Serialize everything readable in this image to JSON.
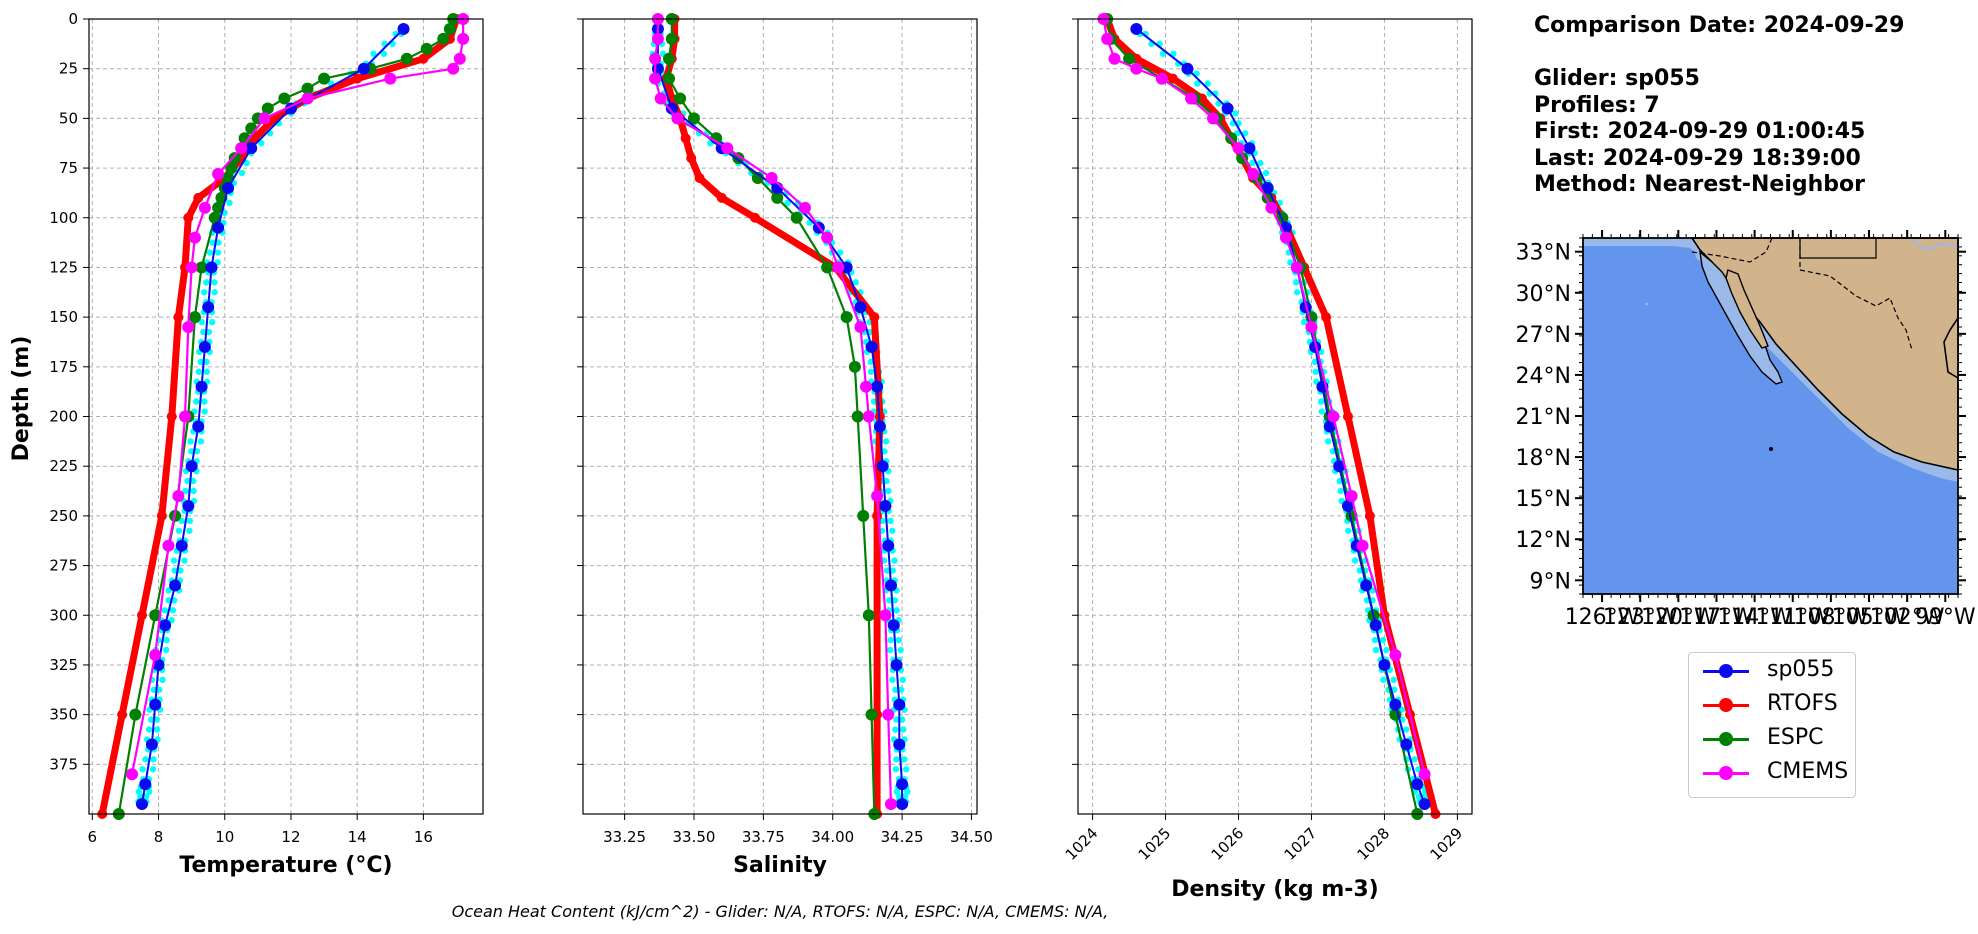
{
  "info": {
    "comparison_date": "Comparison Date: 2024-09-29",
    "glider": "Glider: sp055",
    "profiles": "Profiles: 7",
    "first": "First: 2024-09-29 01:00:45",
    "last": "Last: 2024-09-29 18:39:00",
    "method": "Method: Nearest-Neighbor"
  },
  "footer": "Ocean Heat Content (kJ/cm^2) - Glider: N/A,  RTOFS: N/A,  ESPC: N/A,  CMEMS: N/A,",
  "legend": [
    {
      "name": "sp055",
      "color": "#0a0af0"
    },
    {
      "name": "RTOFS",
      "color": "#ff0000"
    },
    {
      "name": "ESPC",
      "color": "#008000"
    },
    {
      "name": "CMEMS",
      "color": "#ff00ff"
    }
  ],
  "colors": {
    "glider_raw": "#00ffff",
    "ocean": "#6495ed",
    "land": "#d2b48c",
    "shelf": "#9ab8e8"
  },
  "chart_data": [
    {
      "type": "line",
      "xlabel": "Temperature (°C)",
      "ylabel": "Depth (m)",
      "xlim": [
        5.9,
        17.8
      ],
      "ylim": [
        400,
        0
      ],
      "xticks": [
        6,
        8,
        10,
        12,
        14,
        16
      ],
      "yticks": [
        0,
        25,
        50,
        75,
        100,
        125,
        150,
        175,
        200,
        225,
        250,
        275,
        300,
        325,
        350,
        375
      ],
      "grid": true,
      "series": [
        {
          "name": "sp055",
          "depth": [
            5,
            25,
            45,
            65,
            85,
            105,
            125,
            145,
            165,
            185,
            205,
            225,
            245,
            265,
            285,
            305,
            325,
            345,
            365,
            385,
            395
          ],
          "values": [
            15.4,
            14.2,
            12.0,
            10.8,
            10.1,
            9.8,
            9.6,
            9.5,
            9.4,
            9.3,
            9.2,
            9.0,
            8.9,
            8.7,
            8.5,
            8.2,
            8.0,
            7.9,
            7.8,
            7.6,
            7.5
          ]
        },
        {
          "name": "RTOFS",
          "depth": [
            0,
            10,
            20,
            30,
            40,
            50,
            60,
            70,
            80,
            90,
            100,
            125,
            150,
            200,
            250,
            300,
            350,
            400
          ],
          "values": [
            17.0,
            16.8,
            16.0,
            14.0,
            12.5,
            11.5,
            10.9,
            10.5,
            10.0,
            9.2,
            8.9,
            8.8,
            8.6,
            8.4,
            8.1,
            7.5,
            6.9,
            6.3
          ]
        },
        {
          "name": "ESPC",
          "depth": [
            0,
            5,
            10,
            15,
            20,
            25,
            30,
            35,
            40,
            45,
            50,
            55,
            60,
            65,
            70,
            75,
            80,
            85,
            90,
            95,
            100,
            125,
            150,
            200,
            250,
            300,
            350,
            400
          ],
          "values": [
            16.9,
            16.8,
            16.6,
            16.1,
            15.5,
            14.4,
            13.0,
            12.5,
            11.8,
            11.3,
            11.0,
            10.8,
            10.6,
            10.5,
            10.3,
            10.2,
            10.1,
            10.0,
            9.9,
            9.8,
            9.7,
            9.3,
            9.1,
            8.9,
            8.5,
            7.9,
            7.3,
            6.8
          ]
        },
        {
          "name": "CMEMS",
          "depth": [
            0,
            10,
            20,
            25,
            30,
            40,
            50,
            65,
            78,
            95,
            110,
            125,
            155,
            200,
            240,
            265,
            320,
            380
          ],
          "values": [
            17.2,
            17.2,
            17.1,
            16.9,
            15.0,
            12.5,
            11.2,
            10.5,
            9.8,
            9.4,
            9.1,
            9.0,
            8.9,
            8.8,
            8.6,
            8.3,
            7.9,
            7.2
          ]
        }
      ]
    },
    {
      "type": "line",
      "xlabel": "Salinity",
      "xlim": [
        33.1,
        34.52
      ],
      "ylim": [
        400,
        0
      ],
      "xticks": [
        "33.25",
        "33.50",
        "33.75",
        "34.00",
        "34.25",
        "34.50"
      ],
      "grid": true,
      "series": [
        {
          "name": "sp055",
          "depth": [
            5,
            25,
            45,
            65,
            85,
            105,
            125,
            145,
            165,
            185,
            205,
            225,
            245,
            265,
            285,
            305,
            325,
            345,
            365,
            385,
            395
          ],
          "values": [
            33.37,
            33.37,
            33.42,
            33.6,
            33.8,
            33.95,
            34.05,
            34.1,
            34.14,
            34.16,
            34.17,
            34.18,
            34.19,
            34.2,
            34.21,
            34.22,
            34.23,
            34.24,
            34.24,
            34.25,
            34.25
          ]
        },
        {
          "name": "RTOFS",
          "depth": [
            0,
            10,
            20,
            30,
            40,
            50,
            60,
            70,
            80,
            90,
            100,
            125,
            150,
            200,
            250,
            300,
            350,
            400
          ],
          "values": [
            33.43,
            33.43,
            33.42,
            33.4,
            33.42,
            33.45,
            33.47,
            33.49,
            33.52,
            33.6,
            33.72,
            34.01,
            34.15,
            34.17,
            34.16,
            34.16,
            34.16,
            34.16
          ]
        },
        {
          "name": "ESPC",
          "depth": [
            0,
            10,
            20,
            30,
            40,
            50,
            60,
            70,
            80,
            90,
            100,
            125,
            150,
            175,
            200,
            250,
            300,
            350,
            400
          ],
          "values": [
            33.42,
            33.42,
            33.41,
            33.41,
            33.45,
            33.5,
            33.58,
            33.66,
            33.73,
            33.8,
            33.87,
            33.98,
            34.05,
            34.08,
            34.09,
            34.11,
            34.13,
            34.14,
            34.15
          ]
        },
        {
          "name": "CMEMS",
          "depth": [
            0,
            10,
            20,
            30,
            40,
            50,
            65,
            80,
            95,
            110,
            125,
            155,
            185,
            200,
            240,
            300,
            350,
            395
          ],
          "values": [
            33.37,
            33.37,
            33.36,
            33.36,
            33.38,
            33.44,
            33.62,
            33.78,
            33.9,
            33.98,
            34.02,
            34.1,
            34.12,
            34.13,
            34.16,
            34.19,
            34.2,
            34.21
          ]
        }
      ]
    },
    {
      "type": "line",
      "xlabel": "Density (kg m-3)",
      "xlim": [
        1023.8,
        1029.2
      ],
      "ylim": [
        400,
        0
      ],
      "xticks": [
        1024,
        1025,
        1026,
        1027,
        1028,
        1029
      ],
      "grid": true,
      "series": [
        {
          "name": "sp055",
          "depth": [
            5,
            25,
            45,
            65,
            85,
            105,
            125,
            145,
            165,
            185,
            205,
            225,
            245,
            265,
            285,
            305,
            325,
            345,
            365,
            385,
            395
          ],
          "values": [
            1024.6,
            1025.3,
            1025.85,
            1026.15,
            1026.4,
            1026.65,
            1026.8,
            1026.92,
            1027.05,
            1027.15,
            1027.25,
            1027.38,
            1027.5,
            1027.62,
            1027.75,
            1027.88,
            1028.0,
            1028.15,
            1028.3,
            1028.45,
            1028.55
          ]
        },
        {
          "name": "RTOFS",
          "depth": [
            0,
            10,
            20,
            30,
            40,
            50,
            60,
            70,
            80,
            90,
            100,
            125,
            150,
            200,
            250,
            300,
            350,
            400
          ],
          "values": [
            1024.2,
            1024.3,
            1024.6,
            1025.1,
            1025.5,
            1025.75,
            1025.9,
            1026.05,
            1026.2,
            1026.45,
            1026.6,
            1026.9,
            1027.2,
            1027.5,
            1027.8,
            1028.0,
            1028.35,
            1028.7
          ]
        },
        {
          "name": "ESPC",
          "depth": [
            0,
            10,
            20,
            30,
            40,
            50,
            60,
            70,
            80,
            90,
            100,
            125,
            150,
            200,
            250,
            300,
            350,
            400
          ],
          "values": [
            1024.2,
            1024.25,
            1024.5,
            1024.95,
            1025.4,
            1025.7,
            1025.9,
            1026.05,
            1026.25,
            1026.4,
            1026.6,
            1026.85,
            1027.0,
            1027.25,
            1027.55,
            1027.85,
            1028.15,
            1028.45
          ]
        },
        {
          "name": "CMEMS",
          "depth": [
            0,
            10,
            20,
            25,
            30,
            40,
            50,
            65,
            78,
            95,
            110,
            125,
            155,
            200,
            240,
            265,
            320,
            380
          ],
          "values": [
            1024.15,
            1024.2,
            1024.3,
            1024.6,
            1024.95,
            1025.35,
            1025.65,
            1026.0,
            1026.2,
            1026.45,
            1026.65,
            1026.8,
            1027.0,
            1027.3,
            1027.55,
            1027.7,
            1028.15,
            1028.55
          ]
        }
      ]
    },
    {
      "type": "map",
      "yticks": [
        "33°N",
        "30°N",
        "27°N",
        "24°N",
        "21°N",
        "18°N",
        "15°N",
        "12°N",
        "9°N"
      ],
      "xticks": [
        "126°W",
        "123°W",
        "120°W",
        "117°W",
        "114°W",
        "111°W",
        "108°W",
        "105°W",
        "102°W",
        "99°W"
      ],
      "xlim": [
        -127.5,
        -98
      ],
      "ylim": [
        8,
        34
      ]
    }
  ]
}
